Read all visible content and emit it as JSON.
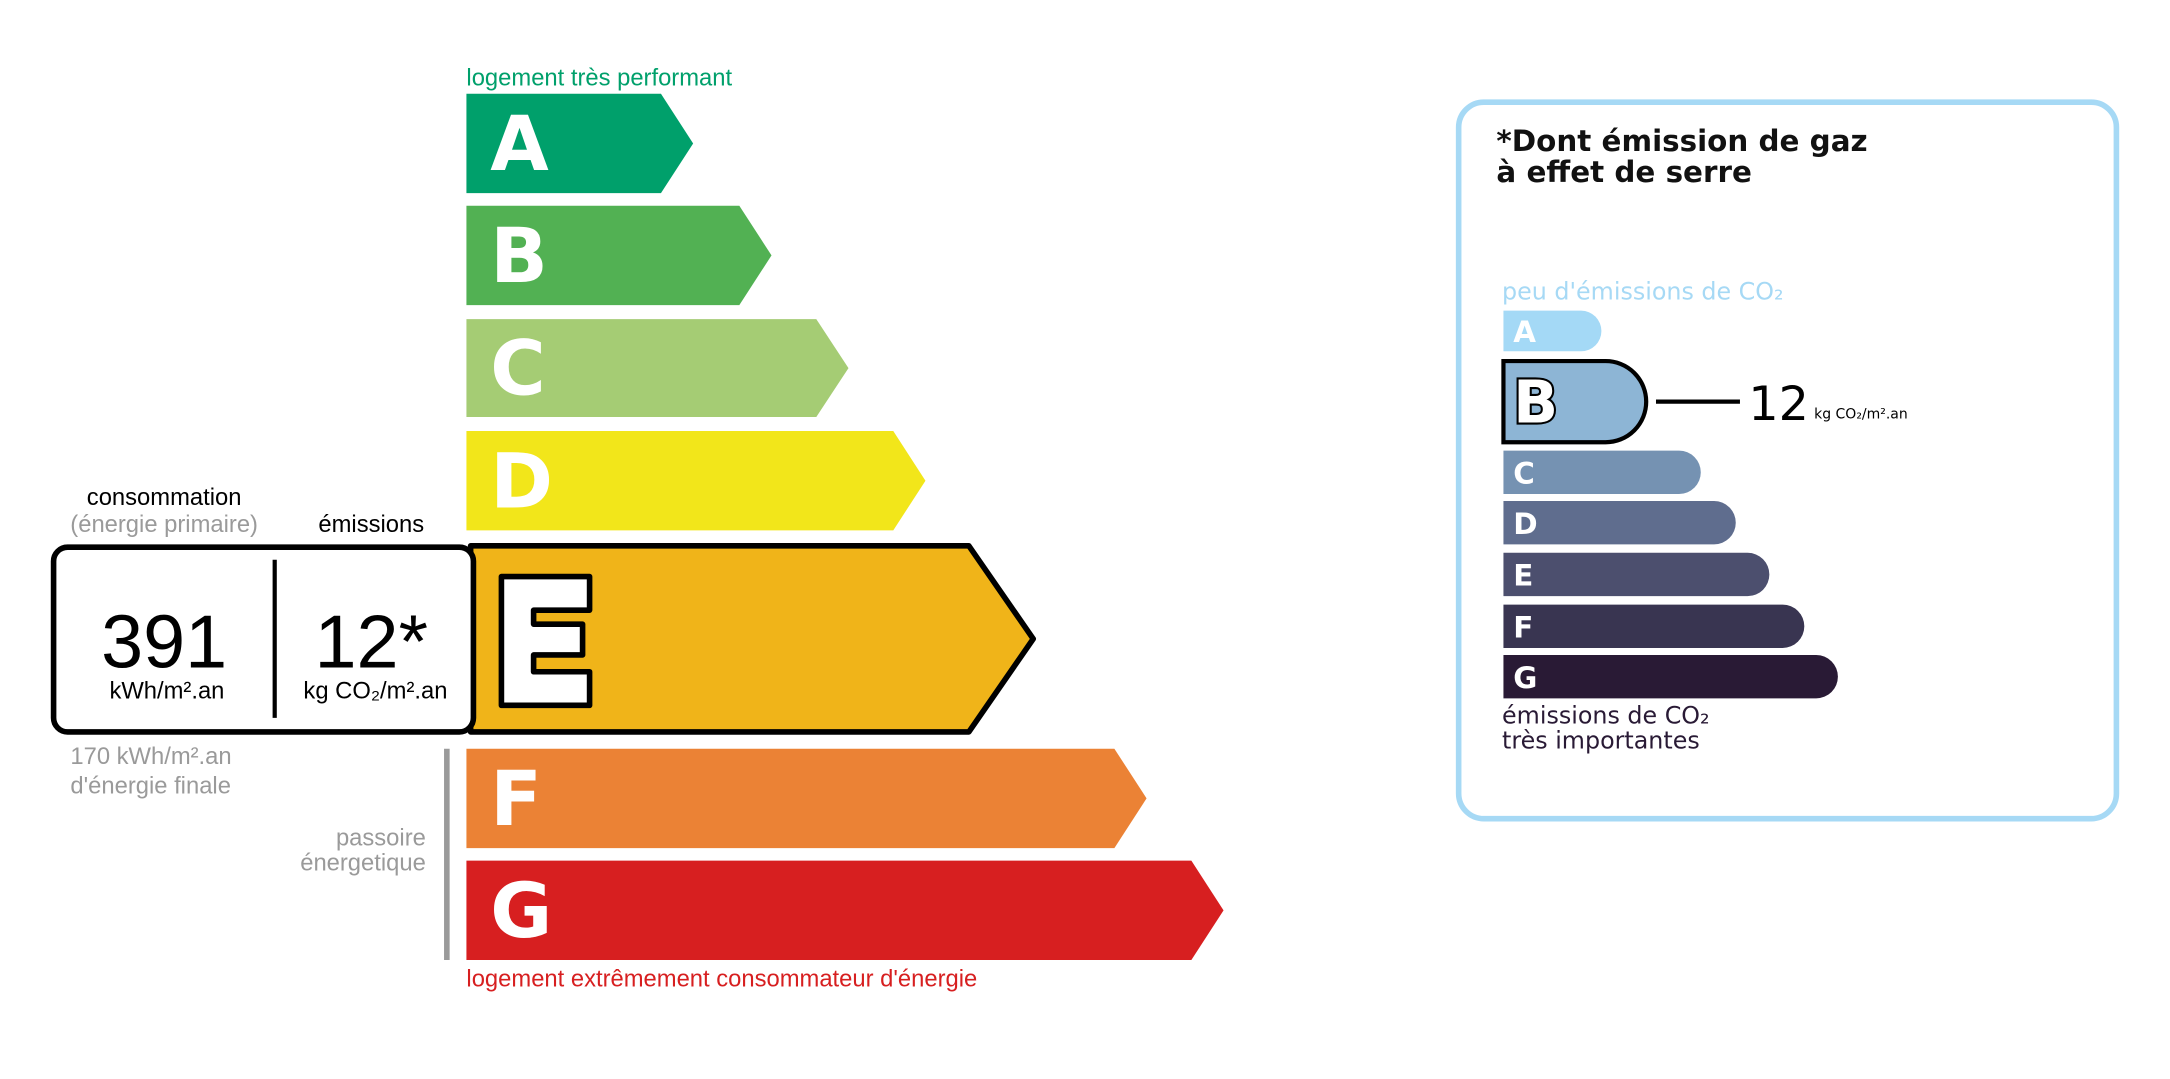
{
  "chart_data": {
    "type": "bar",
    "energy_scale": {
      "top_label": "logement très performant",
      "bottom_label": "logement extrêmement consommateur d'énergie",
      "classes": [
        {
          "letter": "A",
          "color": "#00a06b"
        },
        {
          "letter": "B",
          "color": "#52b153"
        },
        {
          "letter": "C",
          "color": "#a5cc74"
        },
        {
          "letter": "D",
          "color": "#f2e61a"
        },
        {
          "letter": "E",
          "color": "#f0b419"
        },
        {
          "letter": "F",
          "color": "#eb8235"
        },
        {
          "letter": "G",
          "color": "#d71f20"
        }
      ],
      "selected_class": "E",
      "consumption_header": "consommation",
      "consumption_subheader": "(énergie primaire)",
      "emissions_header": "émissions",
      "consumption_value": "391",
      "consumption_unit": "kWh/m².an",
      "emissions_value": "12*",
      "emissions_unit": "kg CO₂/m².an",
      "final_energy_line1": "170 kWh/m².an",
      "final_energy_line2": "d'énergie finale",
      "passoire_line1": "passoire",
      "passoire_line2": "énergetique"
    },
    "ghg_scale": {
      "title_line1": "*Dont émission de gaz",
      "title_line2": "à effet de serre",
      "top_label": "peu d'émissions de CO₂",
      "bottom_label_line1": "émissions de CO₂",
      "bottom_label_line2": "très importantes",
      "classes": [
        {
          "letter": "A",
          "color": "#a4d9f6"
        },
        {
          "letter": "B",
          "color": "#8db5d5"
        },
        {
          "letter": "C",
          "color": "#7592b2"
        },
        {
          "letter": "D",
          "color": "#5f6d8e"
        },
        {
          "letter": "E",
          "color": "#4c4f6e"
        },
        {
          "letter": "F",
          "color": "#393551"
        },
        {
          "letter": "G",
          "color": "#291a35"
        }
      ],
      "selected_class": "B",
      "value": "12",
      "unit": "kg CO₂/m².an",
      "border_color": "#a6d9f5"
    }
  }
}
